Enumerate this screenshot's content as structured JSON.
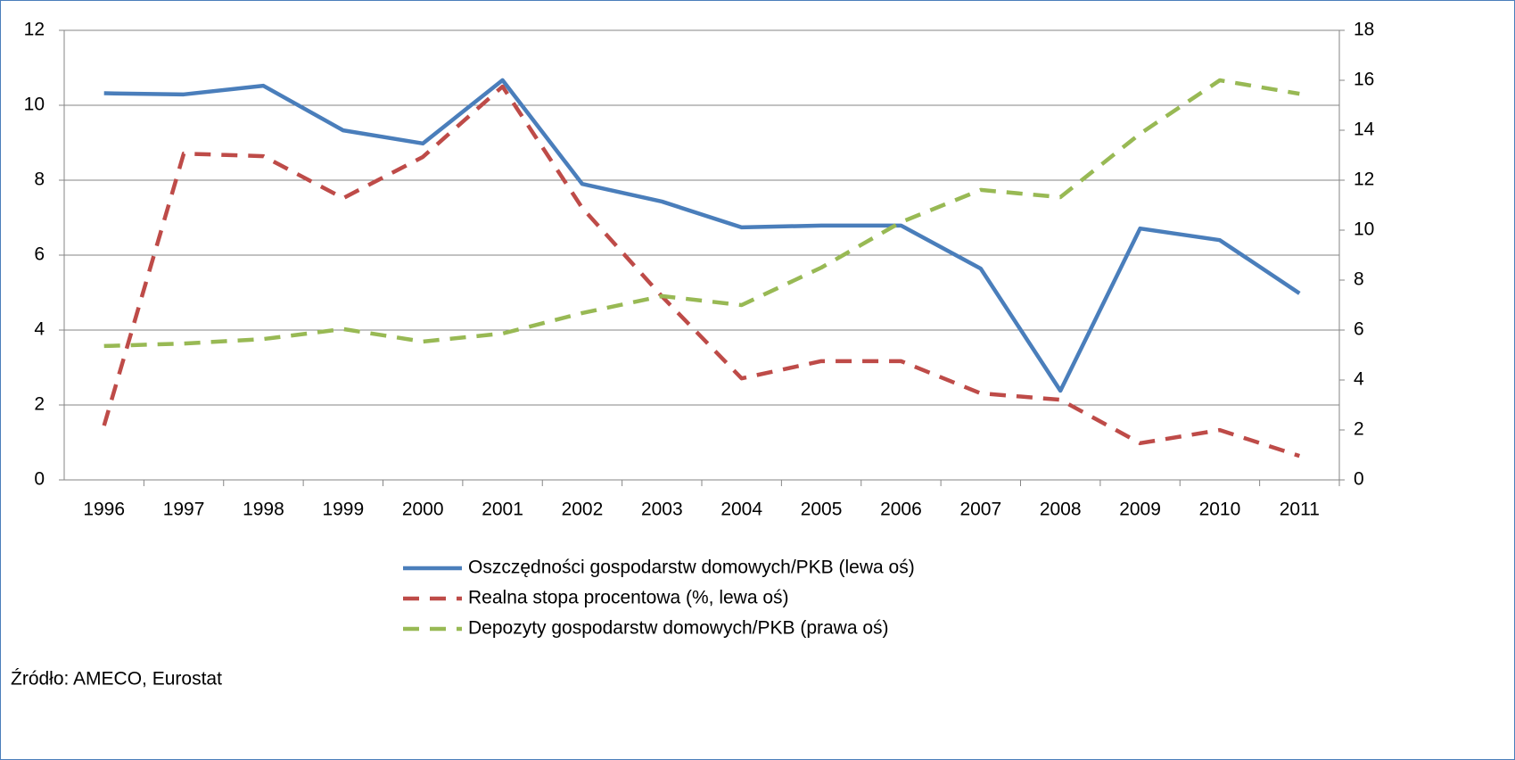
{
  "chart_data": {
    "type": "line",
    "categories": [
      "1996",
      "1997",
      "1998",
      "1999",
      "2000",
      "2001",
      "2002",
      "2003",
      "2004",
      "2005",
      "2006",
      "2007",
      "2008",
      "2009",
      "2010",
      "2011"
    ],
    "series": [
      {
        "name": "Oszczędności gospodarstw domowych/PKB (lewa oś)",
        "color": "#4a7ebb",
        "style": "solid",
        "values": [
          10.32,
          10.29,
          10.52,
          9.33,
          8.98,
          10.67,
          7.9,
          7.43,
          6.74,
          6.79,
          6.79,
          5.64,
          2.38,
          6.71,
          6.4,
          4.98
        ]
      },
      {
        "name": "Realna stopa procentowa (%, lewa oś)",
        "color": "#be4b48",
        "style": "dashed",
        "values": [
          1.45,
          8.71,
          8.64,
          7.52,
          8.62,
          10.5,
          7.26,
          4.9,
          2.71,
          3.17,
          3.17,
          2.31,
          2.14,
          0.98,
          1.33,
          0.64
        ]
      },
      {
        "name": "Depozyty gospodarstw domowych/PKB (prawa oś)",
        "color": "#98b954",
        "style": "dashed",
        "axis": "y2",
        "values": [
          5.36,
          5.46,
          5.64,
          6.04,
          5.54,
          5.86,
          6.68,
          7.36,
          7.0,
          8.5,
          10.32,
          11.61,
          11.32,
          13.86,
          16.0,
          15.46
        ]
      }
    ],
    "ylim": [
      0,
      12
    ],
    "yticks": [
      0,
      2,
      4,
      6,
      8,
      10,
      12
    ],
    "y2lim": [
      0,
      18
    ],
    "y2ticks": [
      0,
      2,
      4,
      6,
      8,
      10,
      12,
      14,
      16,
      18
    ],
    "grid": true,
    "legend": "bottom",
    "source": "Źródło: AMECO, Eurostat"
  }
}
